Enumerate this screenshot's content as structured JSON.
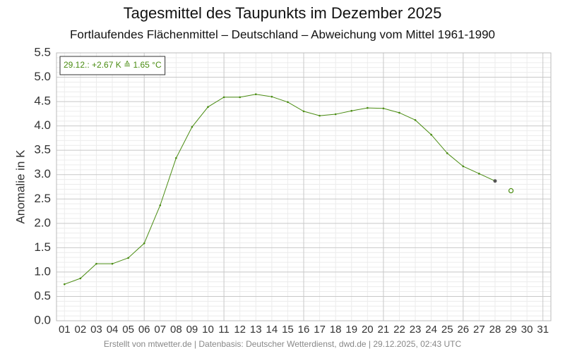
{
  "chart_data": {
    "type": "line",
    "title": "Tagesmittel des Taupunkts im Dezember 2025",
    "subtitle": "Fortlaufendes Flächenmittel – Deutschland – Abweichung vom Mittel 1961-1990",
    "y_label": "Anomalie in K",
    "annotation": "29.12.: +2.67 K ≙ 1.65 °C",
    "footer": "Erstellt von mtwetter.de | Datenbasis: Deutscher Wetterdienst, dwd.de | 29.12.2025, 02:43 UTC",
    "categories": [
      "01",
      "02",
      "03",
      "04",
      "05",
      "06",
      "07",
      "08",
      "09",
      "10",
      "11",
      "12",
      "13",
      "14",
      "15",
      "16",
      "17",
      "18",
      "19",
      "20",
      "21",
      "22",
      "23",
      "24",
      "25",
      "26",
      "27",
      "28",
      "29",
      "30",
      "31"
    ],
    "values": [
      0.75,
      0.87,
      1.17,
      1.17,
      1.29,
      1.59,
      2.37,
      3.34,
      3.98,
      4.39,
      4.59,
      4.59,
      4.65,
      4.6,
      4.49,
      4.3,
      4.21,
      4.24,
      4.31,
      4.37,
      4.36,
      4.27,
      4.12,
      3.82,
      3.44,
      3.17,
      3.02,
      2.87,
      null,
      null,
      null
    ],
    "estimate_values": [
      null,
      null,
      null,
      null,
      null,
      null,
      null,
      null,
      null,
      null,
      null,
      null,
      null,
      null,
      null,
      null,
      null,
      null,
      null,
      null,
      null,
      null,
      null,
      null,
      null,
      null,
      null,
      null,
      2.67,
      null,
      null
    ],
    "color": "#4a8c12",
    "ylim": [
      0,
      5.5
    ],
    "yticks": [
      {
        "value": 0,
        "label": "0.0"
      },
      {
        "value": 0.5,
        "label": "0.5"
      },
      {
        "value": 1,
        "label": "1.0"
      },
      {
        "value": 1.5,
        "label": "1.5"
      },
      {
        "value": 2,
        "label": "2.0"
      },
      {
        "value": 2.5,
        "label": "2.5"
      },
      {
        "value": 3,
        "label": "3.0"
      },
      {
        "value": 3.5,
        "label": "3.5"
      },
      {
        "value": 4,
        "label": "4.0"
      },
      {
        "value": 4.5,
        "label": "4.5"
      },
      {
        "value": 5,
        "label": "5.0"
      },
      {
        "value": 5.5,
        "label": "5.5"
      }
    ],
    "grid": true
  }
}
